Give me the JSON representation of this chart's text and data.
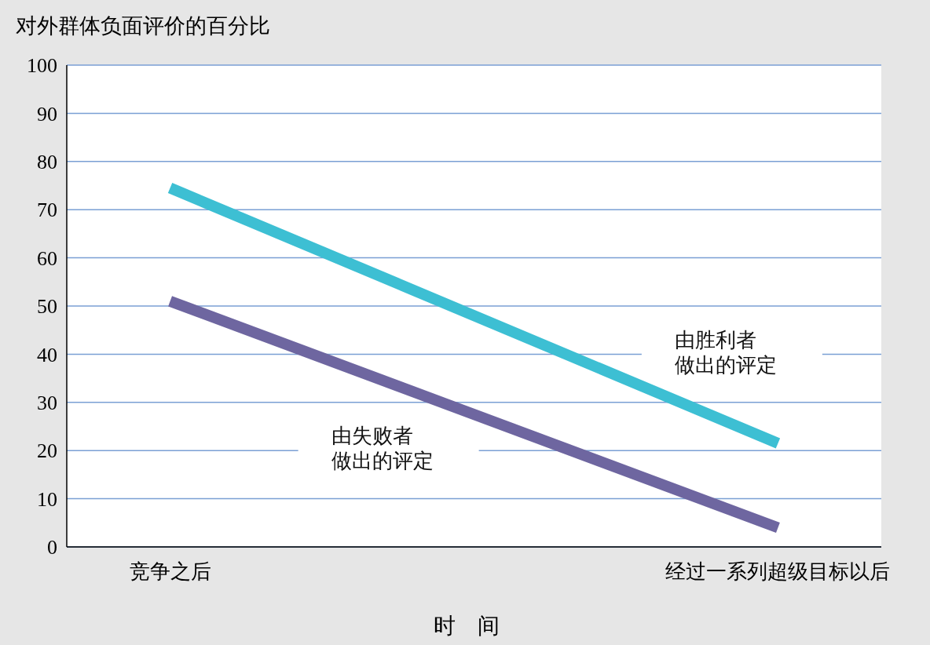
{
  "chart_data": {
    "type": "line",
    "ylabel": "对外群体负面评价的百分比",
    "xlabel": "时　间",
    "categories": [
      "竞争之后",
      "经过一系列超级目标以后"
    ],
    "series": [
      {
        "name": "由胜利者做出的评定",
        "color": "#3dbfd3",
        "values": [
          74.5,
          21.5
        ]
      },
      {
        "name": "由失败者做出的评定",
        "color": "#6e66a0",
        "values": [
          51,
          4
        ]
      }
    ],
    "ylim": [
      0,
      100
    ],
    "yticks": [
      0,
      10,
      20,
      30,
      40,
      50,
      60,
      70,
      80,
      90,
      100
    ],
    "grid": "y",
    "legend": false,
    "marker": "none",
    "line_style": "solid"
  }
}
